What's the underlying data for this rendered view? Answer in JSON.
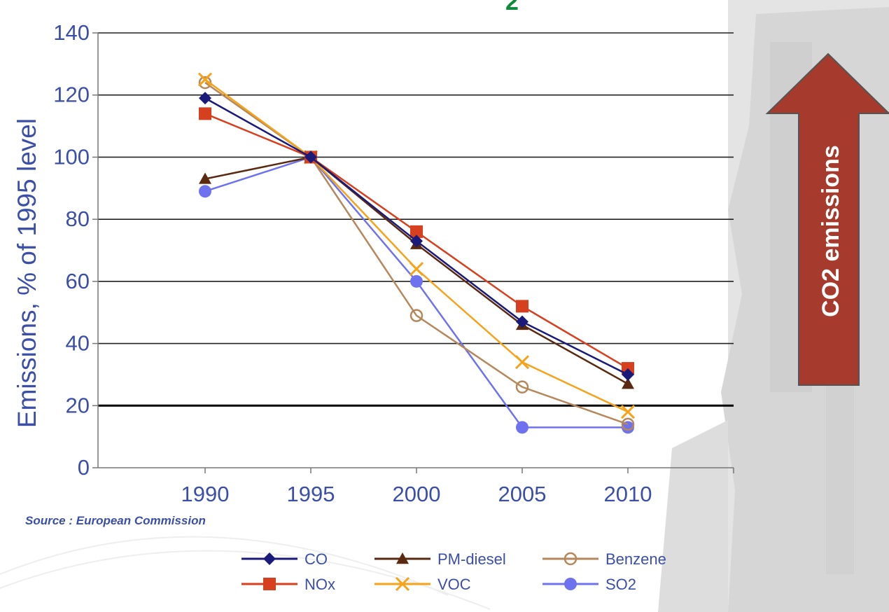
{
  "partial_title": "2",
  "source_text": "Source : European Commission",
  "arrow": {
    "label": "CO2 emissions",
    "fill": "#a63a2c"
  },
  "chart_data": {
    "type": "line",
    "title": "",
    "xlabel": "",
    "ylabel": "Emissions,  % of 1995 level",
    "x": [
      1990,
      1995,
      2000,
      2005,
      2010
    ],
    "x_ticks": [
      "1990",
      "1995",
      "2000",
      "2005",
      "2010"
    ],
    "ylim": [
      0,
      140
    ],
    "y_ticks": [
      "0",
      "20",
      "40",
      "60",
      "80",
      "100",
      "120",
      "140"
    ],
    "grid": true,
    "legend_position": "bottom",
    "series": [
      {
        "name": "CO",
        "color": "#1a1a7a",
        "marker": "diamond",
        "values": [
          119,
          100,
          73,
          47,
          30
        ]
      },
      {
        "name": "PM-diesel",
        "color": "#5a2a10",
        "marker": "triangle",
        "values": [
          93,
          100,
          72,
          46,
          27
        ]
      },
      {
        "name": "Benzene",
        "color": "#b5875a",
        "marker": "circle-open",
        "values": [
          124,
          100,
          49,
          26,
          14
        ]
      },
      {
        "name": "NOx",
        "color": "#d6401e",
        "marker": "square",
        "values": [
          114,
          100,
          76,
          52,
          32
        ]
      },
      {
        "name": "VOC",
        "color": "#f5a31a",
        "marker": "x",
        "values": [
          125,
          100,
          64,
          34,
          18
        ]
      },
      {
        "name": "SO2",
        "color": "#6f72ee",
        "marker": "circle",
        "values": [
          89,
          100,
          60,
          13,
          13
        ]
      }
    ]
  }
}
